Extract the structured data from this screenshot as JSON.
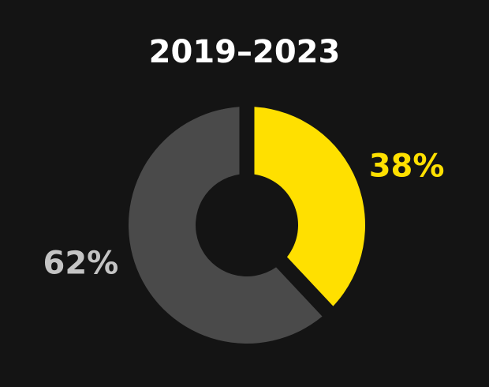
{
  "chart_data": {
    "type": "donut",
    "title": "2019–2023",
    "categories": [
      null,
      null
    ],
    "values": [
      38,
      62
    ],
    "value_labels": [
      "38%",
      "62%"
    ],
    "colors": [
      "#ffe000",
      "#4a4a4a"
    ],
    "label_colors": [
      "#ffe000",
      "#c4c4c4"
    ]
  }
}
